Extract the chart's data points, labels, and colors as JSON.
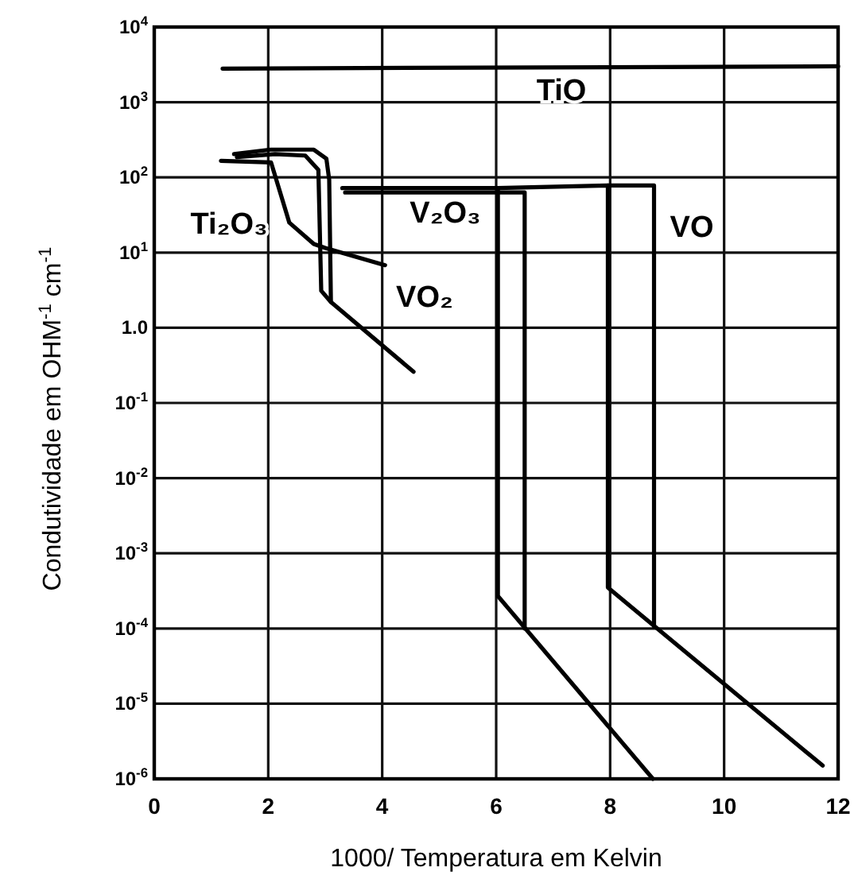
{
  "chart_data": {
    "type": "line",
    "xlabel": "1000/ Temperatura em Kelvin",
    "ylabel": "Condutividade em OHM$^{-1}$ cm$^{-1}$",
    "xlim": [
      0,
      12
    ],
    "xticks": [
      0,
      2,
      4,
      6,
      8,
      10,
      12
    ],
    "ylim": [
      1e-06,
      10000
    ],
    "yticks": [
      {
        "value": 1e-06,
        "label": "10$^{-6}$"
      },
      {
        "value": 1e-05,
        "label": "10$^{-5}$"
      },
      {
        "value": 0.0001,
        "label": "10$^{-4}$"
      },
      {
        "value": 0.001,
        "label": "10$^{-3}$"
      },
      {
        "value": 0.01,
        "label": "10$^{-2}$"
      },
      {
        "value": 0.1,
        "label": "10$^{-1}$"
      },
      {
        "value": 1,
        "label": "1.0"
      },
      {
        "value": 10,
        "label": "10$^{1}$"
      },
      {
        "value": 100,
        "label": "10$^{2}$"
      },
      {
        "value": 1000,
        "label": "10$^{3}$"
      },
      {
        "value": 10000,
        "label": "10$^{4}$"
      }
    ],
    "log": true,
    "grid": true,
    "marker": "none",
    "line_style": "solid",
    "series": [
      {
        "color": "#000000",
        "x": [
          1.2,
          12
        ],
        "values": [
          2800,
          3000
        ]
      },
      {
        "color": "#000000",
        "x": [
          1.17,
          2.05,
          2.37,
          2.8,
          3.0,
          4.05
        ],
        "values": [
          166,
          158,
          25,
          13,
          11.5,
          6.8
        ]
      },
      {
        "color": "#000000",
        "x": [
          1.4,
          2.04,
          2.8,
          3.02,
          3.07,
          3.1,
          4.55
        ],
        "values": [
          204,
          234,
          234,
          178,
          93,
          2.2,
          0.26
        ]
      },
      {
        "color": "#000000",
        "x": [
          1.45,
          2.12,
          2.65,
          2.88,
          2.93,
          3.1
        ],
        "values": [
          186,
          204,
          195,
          126,
          3.1,
          2.2
        ]
      },
      {
        "color": "#000000",
        "x": [
          3.3,
          6.03,
          6.03,
          8.75
        ],
        "values": [
          72,
          72,
          0.00027,
          1e-06
        ]
      },
      {
        "color": "#000000",
        "x": [
          3.35,
          6.5,
          6.5
        ],
        "values": [
          63,
          63,
          0.0001
        ]
      },
      {
        "color": "#000000",
        "x": [
          6.03,
          7.96,
          7.96,
          11.73
        ],
        "values": [
          72,
          78,
          0.00035,
          1.5e-06
        ]
      },
      {
        "color": "#000000",
        "x": [
          7.96,
          8.77,
          8.77
        ],
        "values": [
          78,
          78,
          0.000107
        ]
      }
    ],
    "annotations": [
      "TiO",
      "Ti₂O₃",
      "V₂O₃",
      "VO₂",
      "VO"
    ]
  }
}
